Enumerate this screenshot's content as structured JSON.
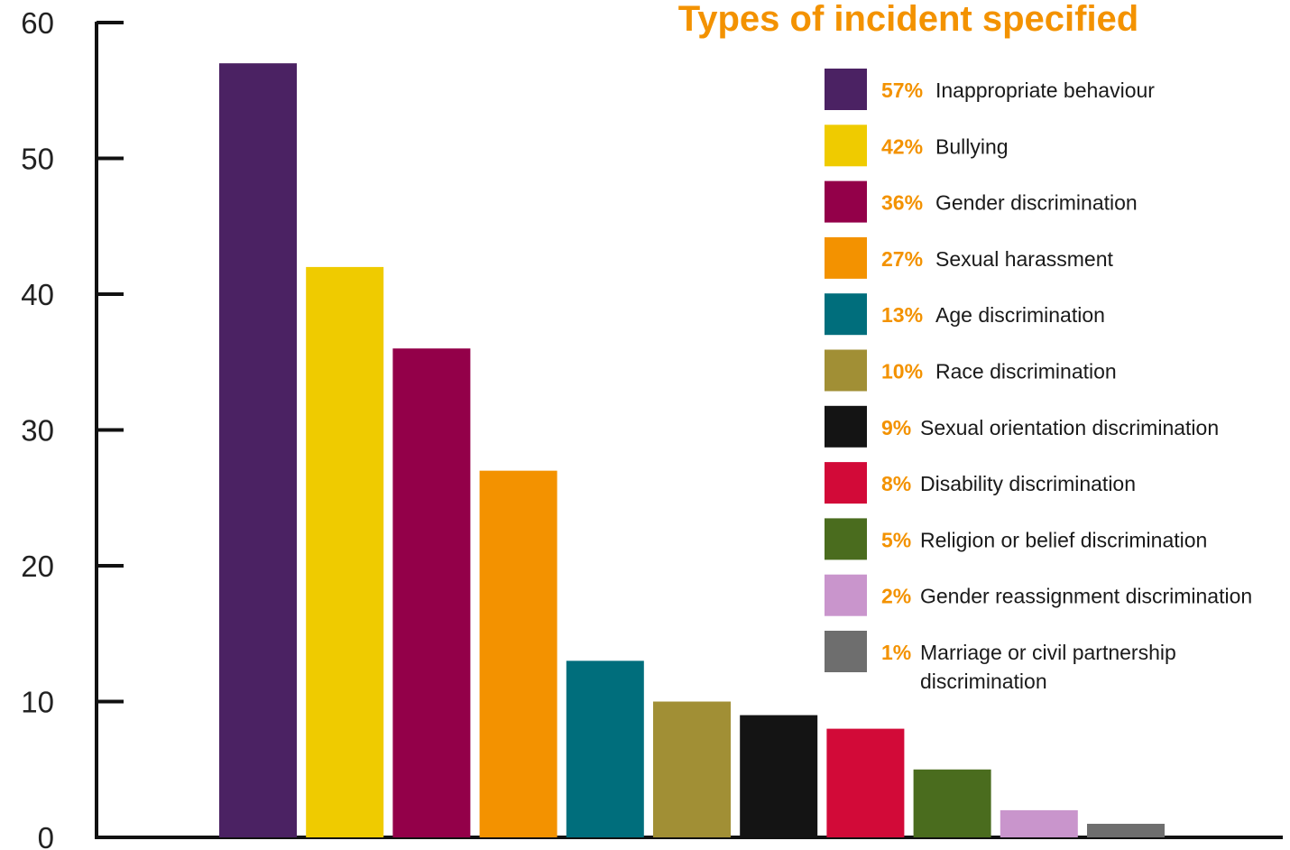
{
  "chart_data": {
    "type": "bar",
    "title": "Types of incident specified",
    "ylim": [
      0,
      60
    ],
    "yticks": [
      0,
      10,
      20,
      30,
      40,
      50,
      60
    ],
    "grid": false,
    "legend_position": "top-right",
    "bars": [
      {
        "name": "Inappropriate behaviour",
        "pct_label": "57%",
        "value": 57,
        "color": "#4b2263"
      },
      {
        "name": "Bullying",
        "pct_label": "42%",
        "value": 42,
        "color": "#efcb00"
      },
      {
        "name": "Gender discrimination",
        "pct_label": "36%",
        "value": 36,
        "color": "#930049"
      },
      {
        "name": "Sexual harassment",
        "pct_label": "27%",
        "value": 27,
        "color": "#f39200"
      },
      {
        "name": "Age discrimination",
        "pct_label": "13%",
        "value": 13,
        "color": "#006e7c"
      },
      {
        "name": "Race discrimination",
        "pct_label": "10%",
        "value": 10,
        "color": "#a18f35"
      },
      {
        "name": "Sexual orientation discrimination",
        "pct_label": "9%",
        "value": 9,
        "color": "#141414"
      },
      {
        "name": "Disability discrimination",
        "pct_label": "8%",
        "value": 8,
        "color": "#d20a38"
      },
      {
        "name": "Religion or belief discrimination",
        "pct_label": "5%",
        "value": 5,
        "color": "#4a6c1e"
      },
      {
        "name": "Gender reassignment discrimination",
        "pct_label": "2%",
        "value": 2,
        "color": "#c995cc"
      },
      {
        "name": "Marriage or civil partnership discrimination",
        "pct_label": "1%",
        "value": 1,
        "color": "#6e6e6e",
        "name_lines": [
          "Marriage or civil partnership",
          "discrimination"
        ]
      }
    ]
  }
}
